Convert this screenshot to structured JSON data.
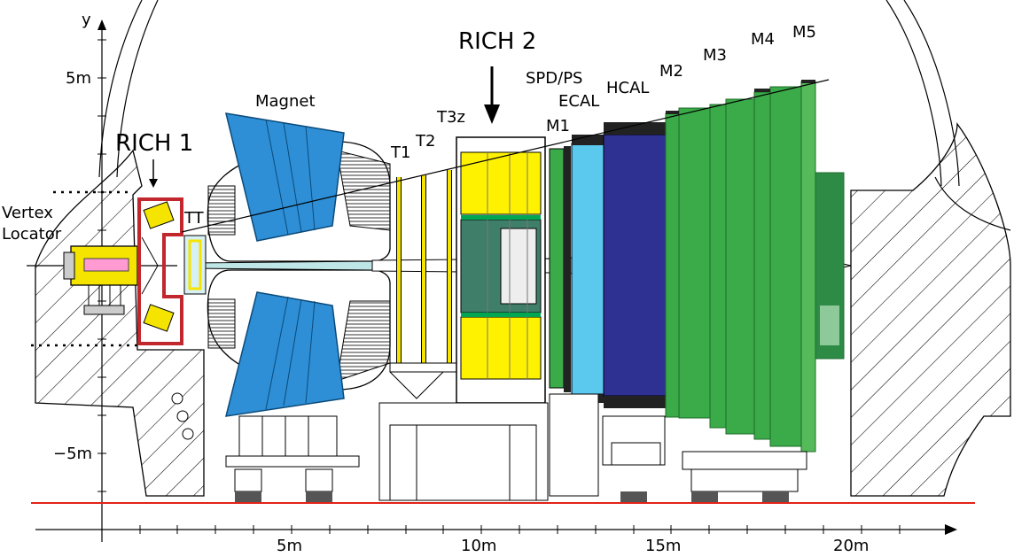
{
  "axes": {
    "x_ticks": [
      "5m",
      "10m",
      "15m",
      "20m"
    ],
    "y_ticks": [
      "5m",
      "−5m"
    ],
    "y_label": "y"
  },
  "labels": {
    "vertex": "Vertex",
    "locator": "Locator",
    "rich1": "RICH 1",
    "tt": "TT",
    "magnet": "Magnet",
    "t1": "T1",
    "t2": "T2",
    "t3z": "T3z",
    "rich2": "RICH 2",
    "spdps": "SPD/PS",
    "ecal": "ECAL",
    "hcal": "HCAL",
    "m1": "M1",
    "m2": "M2",
    "m3": "M3",
    "m4": "M4",
    "m5": "M5"
  },
  "colors": {
    "magnet_blue": "#2e8fd6",
    "vertex_yellow": "#f4e400",
    "rich2_yellow": "#fff200",
    "ecal_cyan": "#5bc8ee",
    "hcal_navy": "#2e3192",
    "muon_green": "#3aab48",
    "beam_red": "#e2231a",
    "rich1_red": "#c1272d"
  }
}
